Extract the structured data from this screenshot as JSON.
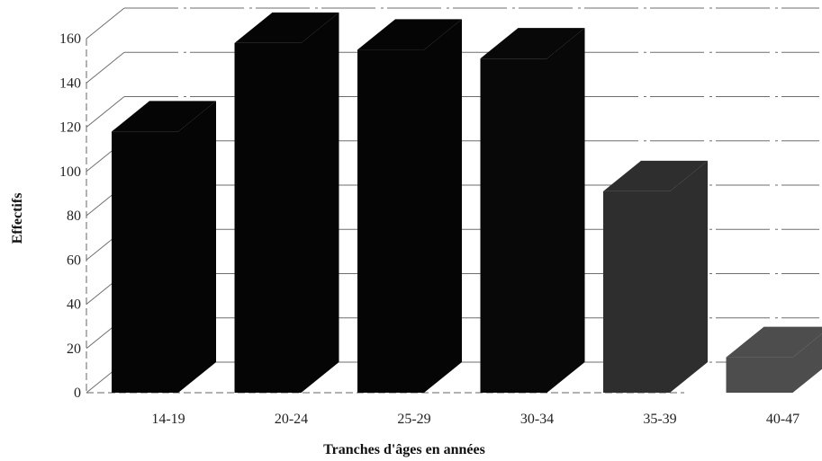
{
  "chart_data": {
    "type": "bar",
    "style": "3d",
    "categories": [
      "14-19",
      "20-24",
      "25-29",
      "30-34",
      "35-39",
      "40-47"
    ],
    "values": [
      118,
      158,
      155,
      151,
      91,
      16
    ],
    "xlabel": "Tranches d'âges en années",
    "ylabel": "Effectifs",
    "ylim": [
      0,
      160
    ],
    "yticks": [
      0,
      20,
      40,
      60,
      80,
      100,
      120,
      140,
      160
    ],
    "grid": true,
    "legend": "none",
    "bar_colors": [
      "#050505",
      "#050505",
      "#050505",
      "#080808",
      "#2e2e2e",
      "#4d4d4d"
    ]
  }
}
